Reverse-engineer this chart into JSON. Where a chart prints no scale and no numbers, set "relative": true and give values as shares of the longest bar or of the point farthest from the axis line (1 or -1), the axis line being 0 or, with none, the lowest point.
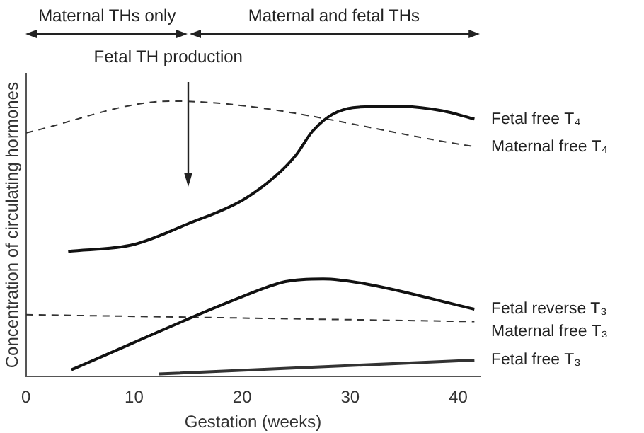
{
  "chart_data": {
    "type": "line",
    "relative": true,
    "xlabel": "Gestation (weeks)",
    "ylabel": "Concentration of circulating hormones",
    "xlim": [
      0,
      42
    ],
    "xticks": [
      0,
      10,
      20,
      30,
      40
    ],
    "grid": false,
    "legend": false,
    "marker": "none",
    "annotations": [
      "Maternal THs only",
      "Maternal and fetal THs",
      "Fetal TH production"
    ],
    "series": [
      {
        "name": "Fetal free T₄",
        "color": "#111111",
        "line_style": "solid",
        "x": [
          3.9,
          10,
          15,
          20,
          23,
          25,
          26.5,
          28.5,
          32,
          35,
          38.5,
          41.5
        ],
        "values": [
          0.455,
          0.48,
          0.555,
          0.64,
          0.725,
          0.805,
          0.89,
          0.955,
          0.98,
          0.98,
          0.965,
          0.935
        ]
      },
      {
        "name": "Maternal free T₄",
        "color": "#333333",
        "line_style": "dashed",
        "x": [
          0,
          13.4,
          41.5
        ],
        "values": [
          0.885,
          1.0,
          0.835
        ]
      },
      {
        "name": "Fetal reverse T₃",
        "color": "#111111",
        "line_style": "solid",
        "x": [
          4.2,
          20,
          24,
          27.5,
          31,
          41.5
        ],
        "values": [
          0.025,
          0.29,
          0.345,
          0.355,
          0.34,
          0.245
        ]
      },
      {
        "name": "Maternal free T₃",
        "color": "#333333",
        "line_style": "dashed",
        "x": [
          0,
          41.5
        ],
        "values": [
          0.225,
          0.2
        ]
      },
      {
        "name": "Fetal free T₃",
        "color": "#333333",
        "line_style": "solid",
        "x": [
          12.3,
          41.5
        ],
        "values": [
          0.01,
          0.06
        ]
      }
    ]
  }
}
